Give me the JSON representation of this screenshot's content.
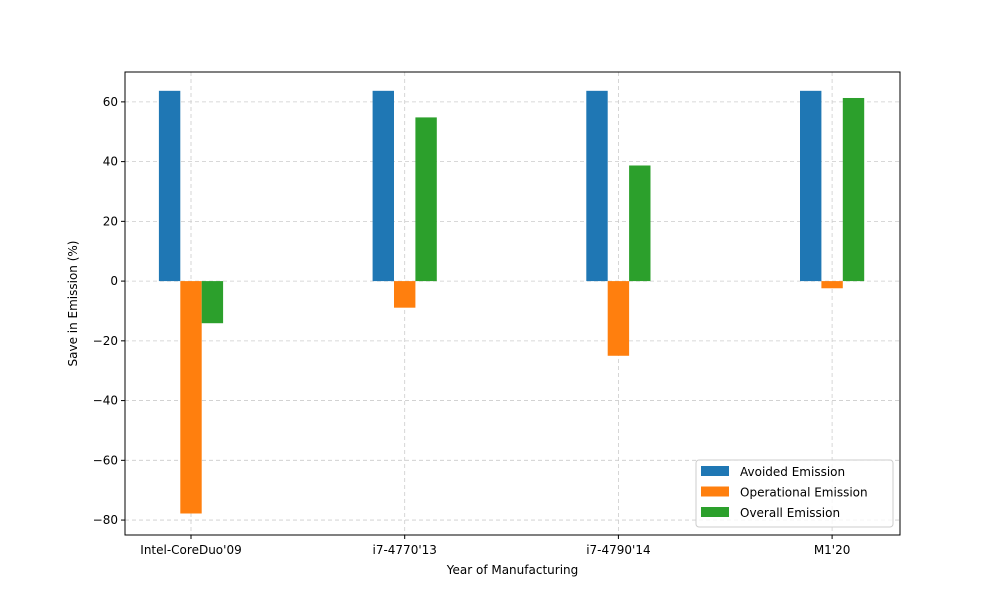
{
  "chart_data": {
    "type": "bar",
    "categories": [
      "Intel-CoreDuo'09",
      "i7-4770'13",
      "i7-4790'14",
      "M1'20"
    ],
    "series": [
      {
        "name": "Avoided Emission",
        "values": [
          63.7,
          63.7,
          63.7,
          63.7
        ],
        "color": "#1f77b4"
      },
      {
        "name": "Operational Emission",
        "values": [
          -77.8,
          -8.9,
          -25.0,
          -2.4
        ],
        "color": "#ff7f0e"
      },
      {
        "name": "Overall Emission",
        "values": [
          -14.1,
          54.8,
          38.7,
          61.3
        ],
        "color": "#2ca02c"
      }
    ],
    "xlabel": "Year of Manufacturing",
    "ylabel": "Save in Emission (%)",
    "ylim": [
      -85,
      70
    ],
    "yticks": [
      -80,
      -60,
      -40,
      -20,
      0,
      20,
      40,
      60
    ],
    "grid": true,
    "legend_position": "lower-right"
  }
}
